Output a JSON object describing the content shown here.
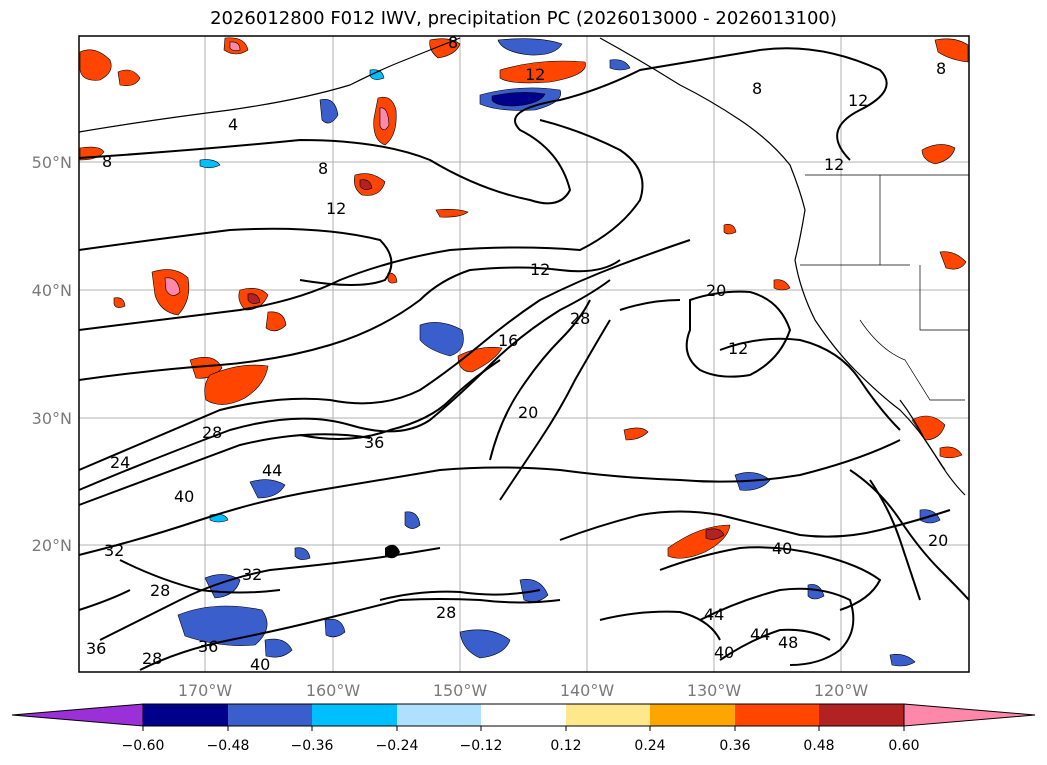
{
  "title": "2026012800 F012 IWV, precipitation PC (2026013000 - 2026013100)",
  "map": {
    "lat_labels": [
      "50°N",
      "40°N",
      "30°N",
      "20°N"
    ],
    "lon_labels": [
      "170°W",
      "160°W",
      "150°W",
      "140°W",
      "130°W",
      "120°W"
    ],
    "contour_labels": [
      "12",
      "8",
      "4",
      "8",
      "8",
      "12",
      "12",
      "12",
      "8",
      "8",
      "12",
      "16",
      "28",
      "20",
      "12",
      "20",
      "28",
      "24",
      "36",
      "44",
      "40",
      "32",
      "32",
      "28",
      "28",
      "36",
      "40",
      "28",
      "36",
      "40",
      "40",
      "44",
      "44",
      "48",
      "20"
    ]
  },
  "colorbar": {
    "tick_labels": [
      "−0.60",
      "−0.48",
      "−0.36",
      "−0.24",
      "−0.12",
      "0.12",
      "0.24",
      "0.36",
      "0.48",
      "0.60"
    ],
    "colors": [
      "#9b30d9",
      "#00008b",
      "#3a5fcd",
      "#00bfff",
      "#b0e0ff",
      "#ffffff",
      "#ffe88c",
      "#ffa500",
      "#ff4500",
      "#b22222",
      "#ff88aa"
    ]
  }
}
